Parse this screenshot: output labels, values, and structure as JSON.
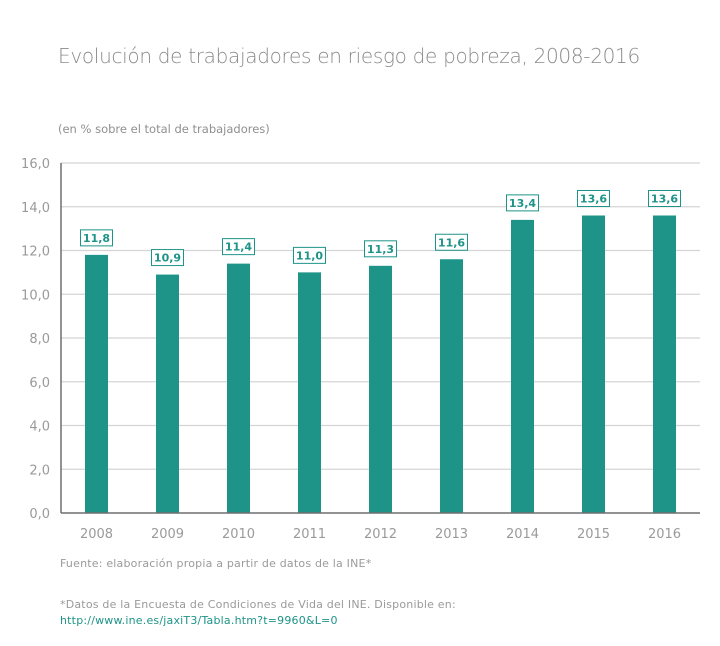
{
  "chart_data": {
    "type": "bar",
    "title": "Evolución de trabajadores en riesgo de pobreza, 2008-2016",
    "subtitle": "(en % sobre el total de trabajadores)",
    "xlabel": "",
    "ylabel": "",
    "categories": [
      "2008",
      "2009",
      "2010",
      "2011",
      "2012",
      "2013",
      "2014",
      "2015",
      "2016"
    ],
    "values": [
      11.8,
      10.9,
      11.4,
      11.0,
      11.3,
      11.6,
      13.4,
      13.6,
      13.6
    ],
    "data_labels": [
      "11,8",
      "10,9",
      "11,4",
      "11,0",
      "11,3",
      "11,6",
      "13,4",
      "13,6",
      "13,6"
    ],
    "ylim": [
      0,
      16
    ],
    "yticks": [
      0,
      2,
      4,
      6,
      8,
      10,
      12,
      14,
      16
    ],
    "ytick_labels": [
      "0,0",
      "2,0",
      "4,0",
      "6,0",
      "8,0",
      "10,0",
      "12,0",
      "14,0",
      "16,0"
    ],
    "grid": true,
    "legend": "none",
    "bar_color": "#1e9488",
    "label_color": "#1e9488",
    "axis_text_color": "#9a9a9a"
  },
  "footer": {
    "source": "Fuente: elaboración propia a partir de datos de la INE*",
    "note": "*Datos de la Encuesta de Condiciones de Vida del INE. Disponible en:",
    "link": "http://www.ine.es/jaxiT3/Tabla.htm?t=9960&L=0"
  }
}
